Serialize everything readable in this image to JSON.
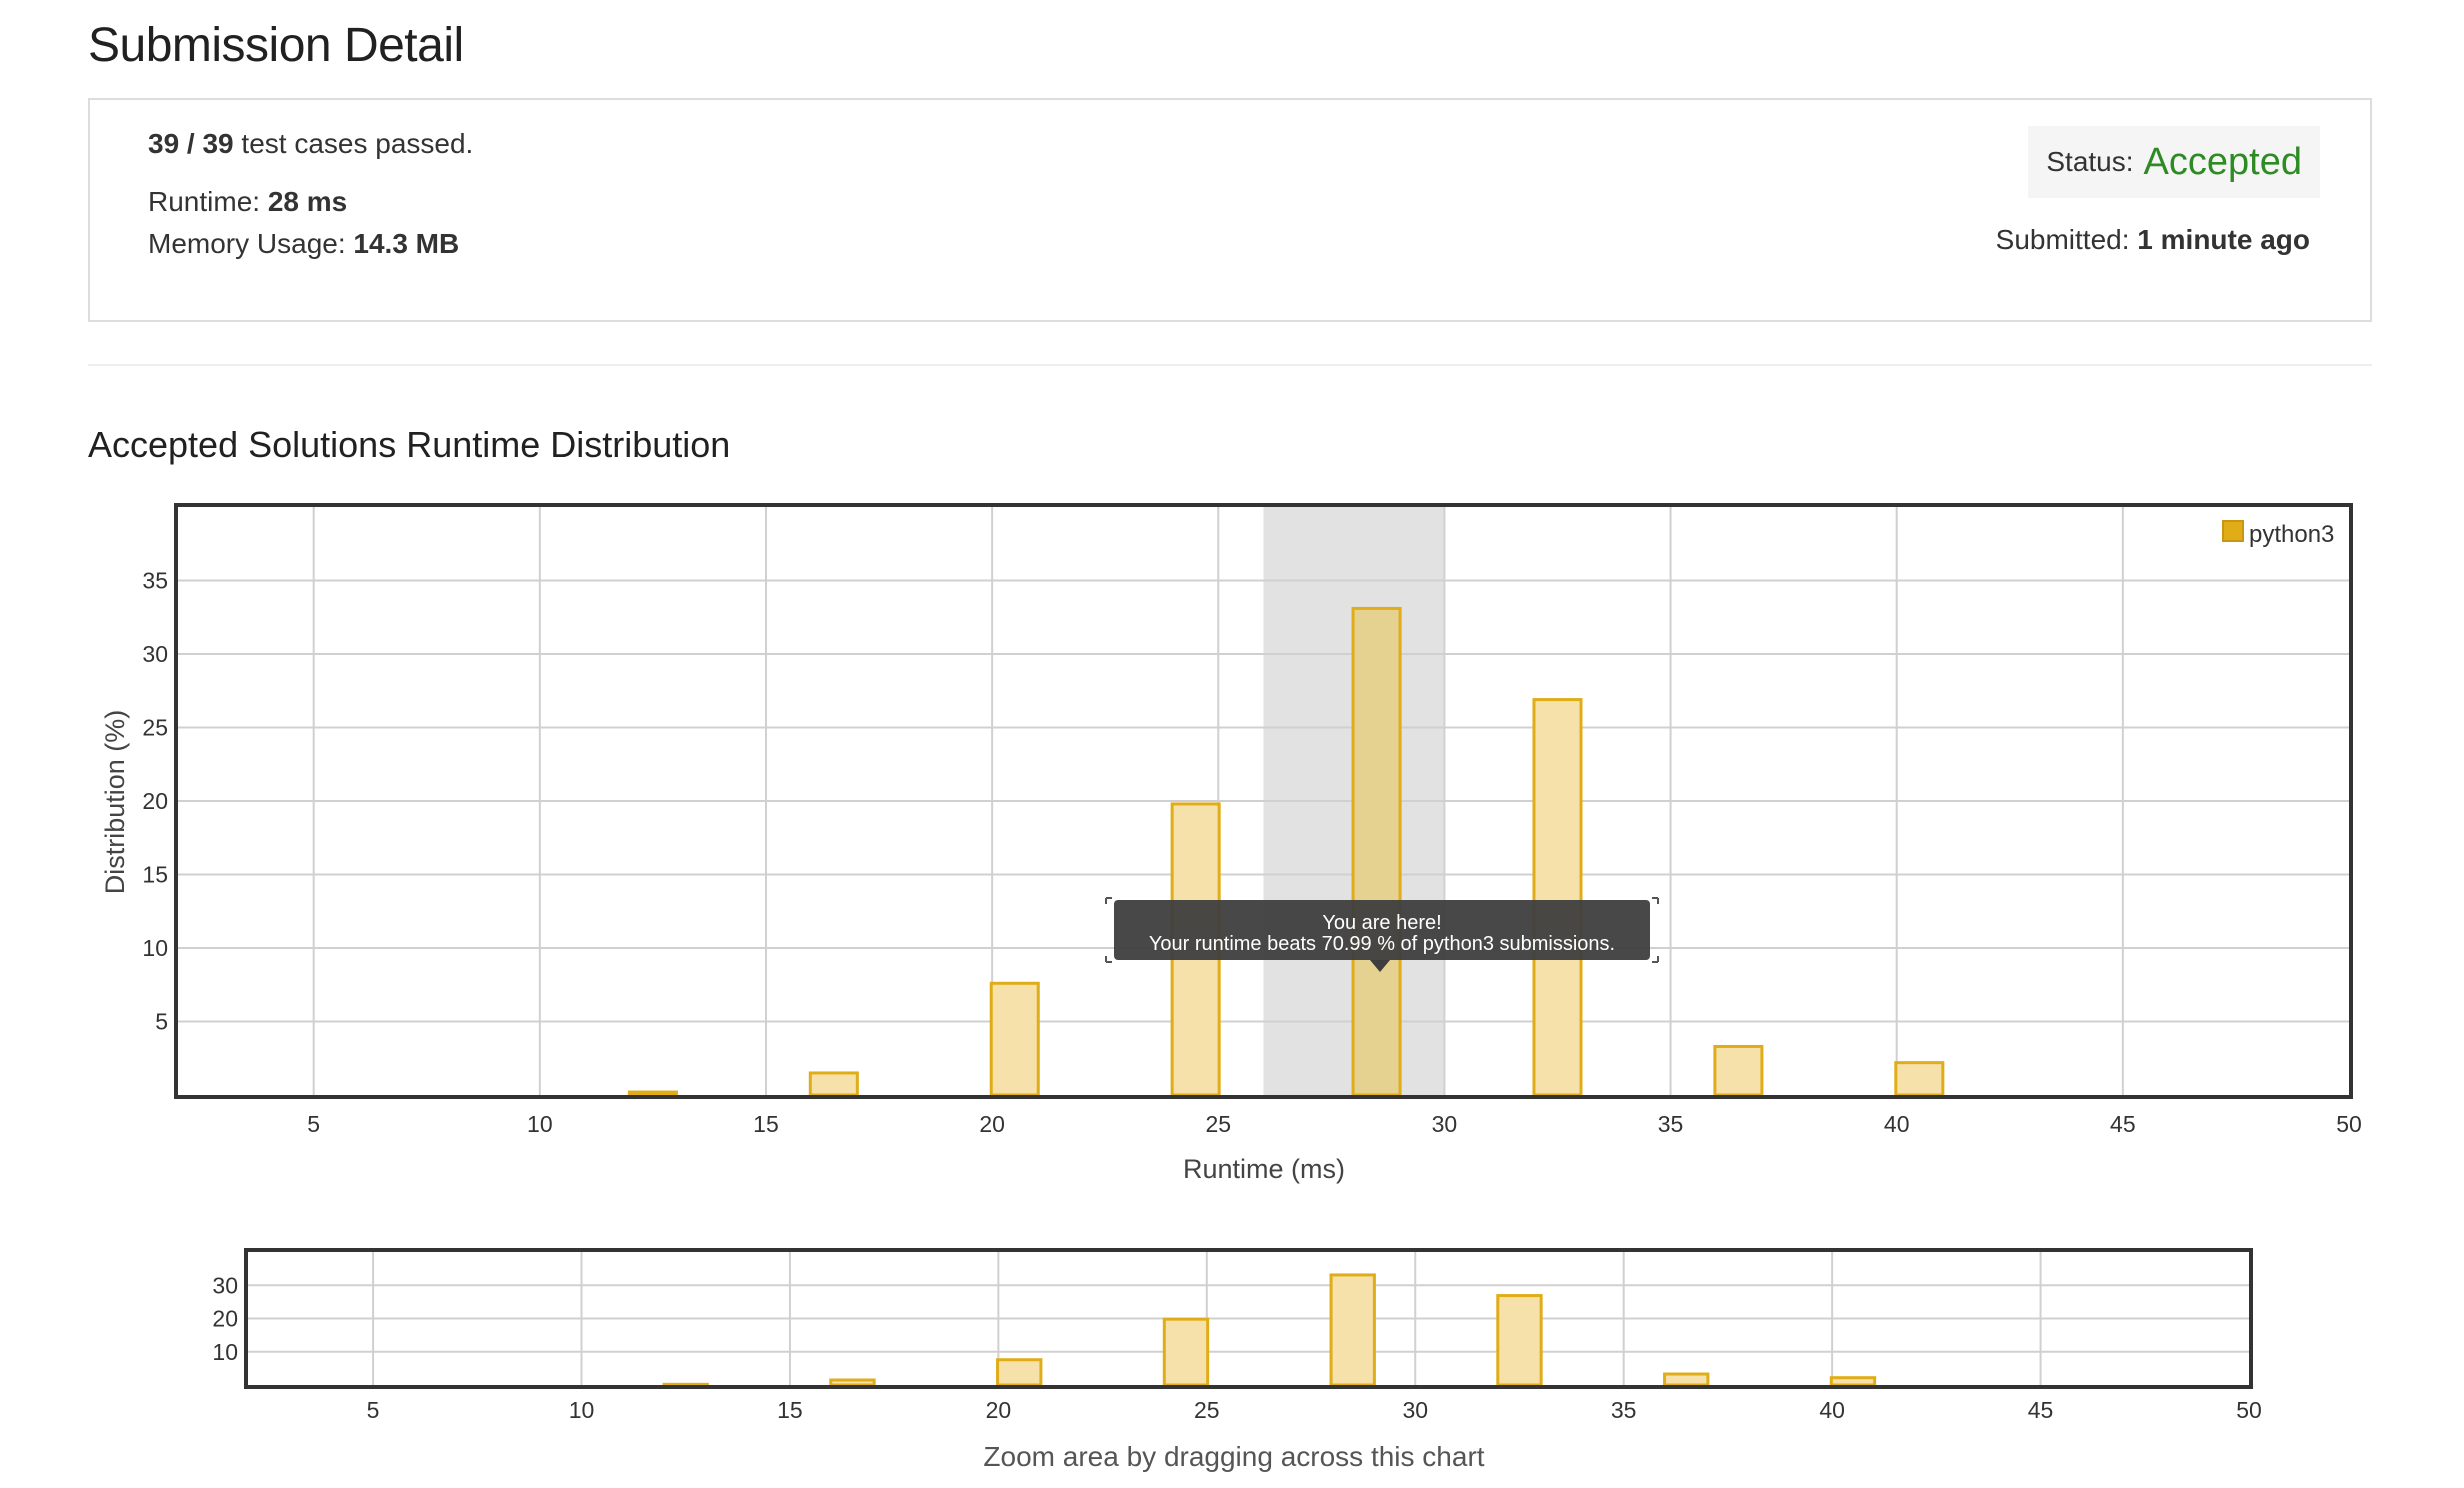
{
  "page": {
    "title": "Submission Detail",
    "section_title": "Accepted Solutions Runtime Distribution"
  },
  "summary": {
    "tests_passed": "39 / 39",
    "tests_suffix": "test cases passed.",
    "runtime_label": "Runtime:",
    "runtime_value": "28 ms",
    "memory_label": "Memory Usage:",
    "memory_value": "14.3 MB",
    "status_label": "Status:",
    "status_value": "Accepted",
    "submitted_label": "Submitted:",
    "submitted_value": "1 minute ago"
  },
  "colors": {
    "accepted": "#2e8b24",
    "bar_fill": "#f5e1a9",
    "bar_stroke": "#e0ad18",
    "highlight_band": "#e2e2e2",
    "highlight_bar_fill": "#e5d190"
  },
  "tooltip": {
    "line1": "You are here!",
    "line2": "Your runtime beats 70.99 % of python3 submissions."
  },
  "navigator": {
    "caption": "Zoom area by dragging across this chart"
  },
  "chart_data": [
    {
      "type": "bar",
      "title": "Accepted Solutions Runtime Distribution",
      "xlabel": "Runtime (ms)",
      "ylabel": "Distribution (%)",
      "xlim": [
        2,
        50
      ],
      "ylim": [
        0,
        40
      ],
      "xticks": [
        5,
        10,
        15,
        20,
        25,
        30,
        35,
        40,
        45,
        50
      ],
      "yticks": [
        5,
        10,
        15,
        20,
        25,
        30,
        35
      ],
      "grid": true,
      "legend": "top-right",
      "highlight_range": [
        26,
        30
      ],
      "series": [
        {
          "name": "python3",
          "color": "#e0ad18",
          "x": [
            12.5,
            16.5,
            20.5,
            24.5,
            28.5,
            32.5,
            36.5,
            40.5
          ],
          "values": [
            0.2,
            1.5,
            7.6,
            19.8,
            33.1,
            26.9,
            3.3,
            2.2
          ]
        }
      ]
    },
    {
      "type": "bar",
      "xlabel": "Zoom area by dragging across this chart",
      "xlim": [
        2,
        50
      ],
      "ylim": [
        0,
        40
      ],
      "xticks": [
        5,
        10,
        15,
        20,
        25,
        30,
        35,
        40,
        45,
        50
      ],
      "yticks": [
        10,
        20,
        30
      ],
      "grid": true,
      "series": [
        {
          "name": "python3",
          "x": [
            12.5,
            16.5,
            20.5,
            24.5,
            28.5,
            32.5,
            36.5,
            40.5
          ],
          "values": [
            0.2,
            1.5,
            7.6,
            19.8,
            33.1,
            26.9,
            3.3,
            2.2
          ]
        }
      ]
    }
  ]
}
